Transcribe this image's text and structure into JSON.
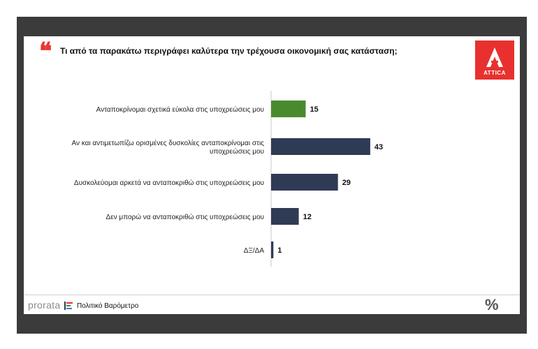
{
  "question": "Τι από τα παρακάτω περιγράφει καλύτερα την τρέχουσα οικονομική σας κατάσταση;",
  "quote_glyph": "❝",
  "logo_text": "ATTICA",
  "footer": {
    "brand": "prorata",
    "barometer": "Πολιτικό Βαρόμετρο",
    "percent_symbol": "%"
  },
  "colors": {
    "highlight": "#4a8a2f",
    "bar": "#2f3a55",
    "accent": "#e8312f"
  },
  "chart_data": {
    "type": "bar",
    "orientation": "horizontal",
    "categories": [
      [
        "Ανταποκρίνομαι σχετικά εύκολα στις υποχρεώσεις μου"
      ],
      [
        "Αν και αντιμετωπίζω ορισμένες δυσκολίες ανταποκρίνομαι στις",
        "υποχρεώσεις μου"
      ],
      [
        "Δυσκολεύομαι αρκετά να ανταποκριθώ στις υποχρεώσεις μου"
      ],
      [
        "Δεν μπορώ να ανταποκριθώ στις υποχρεώσεις μου"
      ],
      [
        "ΔΞ/ΔΑ"
      ]
    ],
    "values": [
      15,
      43,
      29,
      12,
      1
    ],
    "highlight_index": 0,
    "xlim": [
      0,
      50
    ],
    "grid": false
  }
}
